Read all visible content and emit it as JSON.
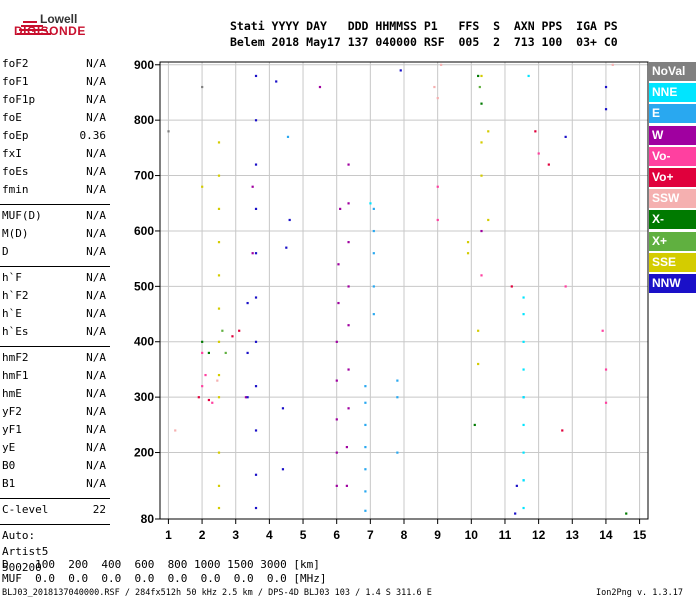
{
  "logo": {
    "top": "Lowell",
    "bottom": "DIGISONDE"
  },
  "header": {
    "line1": "Stati YYYY DAY   DDD HHMMSS P1   FFS  S  AXN PPS  IGA PS",
    "line2": "Belem 2018 May17 137 040000 RSF  005  2  713 100  03+ C0"
  },
  "params_a": [
    {
      "name": "foF2",
      "value": "N/A"
    },
    {
      "name": "foF1",
      "value": "N/A"
    },
    {
      "name": "foF1p",
      "value": "N/A"
    },
    {
      "name": "foE",
      "value": "N/A"
    },
    {
      "name": "foEp",
      "value": "0.36"
    },
    {
      "name": "fxI",
      "value": "N/A"
    },
    {
      "name": "foEs",
      "value": "N/A"
    },
    {
      "name": "fmin",
      "value": "N/A"
    }
  ],
  "params_b": [
    {
      "name": "MUF(D)",
      "value": "N/A"
    },
    {
      "name": "M(D)",
      "value": "N/A"
    },
    {
      "name": "D",
      "value": "N/A"
    }
  ],
  "params_c": [
    {
      "name": "h`F",
      "value": "N/A"
    },
    {
      "name": "h`F2",
      "value": "N/A"
    },
    {
      "name": "h`E",
      "value": "N/A"
    },
    {
      "name": "h`Es",
      "value": "N/A"
    }
  ],
  "params_d": [
    {
      "name": "hmF2",
      "value": "N/A"
    },
    {
      "name": "hmF1",
      "value": "N/A"
    },
    {
      "name": "hmE",
      "value": "N/A"
    },
    {
      "name": "yF2",
      "value": "N/A"
    },
    {
      "name": "yF1",
      "value": "N/A"
    },
    {
      "name": "yE",
      "value": "N/A"
    },
    {
      "name": "B0",
      "value": "N/A"
    },
    {
      "name": "B1",
      "value": "N/A"
    }
  ],
  "clevel": {
    "name": "C-level",
    "value": "22"
  },
  "auto": {
    "line1": "Auto:",
    "line2": "Artist5",
    "line3": "500200"
  },
  "legend": [
    {
      "label": "NoVal",
      "color": "#808080"
    },
    {
      "label": "NNE",
      "color": "#00e5ff"
    },
    {
      "label": "E",
      "color": "#29a8f0"
    },
    {
      "label": "W",
      "color": "#a000a0"
    },
    {
      "label": "Vo-",
      "color": "#ff40a0"
    },
    {
      "label": "Vo+",
      "color": "#e0003c"
    },
    {
      "label": "SSW",
      "color": "#f5b0b0"
    },
    {
      "label": "X-",
      "color": "#007a00"
    },
    {
      "label": "X+",
      "color": "#60b040"
    },
    {
      "label": "SSE",
      "color": "#d4cc00"
    },
    {
      "label": "NNW",
      "color": "#1a10c8"
    }
  ],
  "bottom": {
    "d_row": "D    100  200  400  600  800 1000 1500 3000 [km]",
    "muf_row": "MUF  0.0  0.0  0.0  0.0  0.0  0.0  0.0  0.0 [MHz]",
    "footer_left": "BLJ03_2018137040000.RSF / 284fx512h 50 kHz 2.5 km / DPS-4D BLJ03 103 / 1.4 S 311.6 E",
    "footer_right": "Ion2Png v. 1.3.17"
  },
  "chart_data": {
    "type": "scatter",
    "xlim": [
      0.75,
      15.25
    ],
    "ylim": [
      80,
      905
    ],
    "x_ticks": [
      1,
      2,
      3,
      4,
      5,
      6,
      7,
      8,
      9,
      10,
      11,
      12,
      13,
      14,
      15
    ],
    "y_ticks": [
      80,
      200,
      300,
      400,
      500,
      600,
      700,
      800,
      900
    ],
    "grid": true,
    "legend_position": "right",
    "series": [
      {
        "name": "E",
        "color": "#29a8f0",
        "points": [
          [
            6.85,
            95
          ],
          [
            6.85,
            130
          ],
          [
            6.85,
            170
          ],
          [
            6.85,
            210
          ],
          [
            6.85,
            250
          ],
          [
            6.85,
            290
          ],
          [
            6.85,
            320
          ],
          [
            7.1,
            450
          ],
          [
            7.1,
            500
          ],
          [
            7.1,
            560
          ],
          [
            7.1,
            600
          ],
          [
            7.1,
            640
          ],
          [
            7.8,
            300
          ],
          [
            7.8,
            330
          ],
          [
            7.8,
            200
          ],
          [
            11.55,
            150
          ],
          [
            11.55,
            300
          ],
          [
            4.55,
            770
          ]
        ]
      },
      {
        "name": "NNE",
        "color": "#00e5ff",
        "points": [
          [
            11.55,
            100
          ],
          [
            11.55,
            150
          ],
          [
            11.55,
            200
          ],
          [
            11.55,
            250
          ],
          [
            11.55,
            300
          ],
          [
            11.55,
            350
          ],
          [
            11.55,
            400
          ],
          [
            11.55,
            450
          ],
          [
            11.55,
            480
          ],
          [
            11.7,
            880
          ],
          [
            7.0,
            650
          ]
        ]
      },
      {
        "name": "W",
        "color": "#a000a0",
        "points": [
          [
            6.0,
            140
          ],
          [
            6.0,
            200
          ],
          [
            6.0,
            260
          ],
          [
            6.0,
            330
          ],
          [
            6.0,
            400
          ],
          [
            6.05,
            470
          ],
          [
            6.05,
            540
          ],
          [
            6.1,
            640
          ],
          [
            6.35,
            720
          ],
          [
            6.35,
            650
          ],
          [
            6.35,
            580
          ],
          [
            6.35,
            500
          ],
          [
            6.35,
            430
          ],
          [
            6.35,
            350
          ],
          [
            6.35,
            280
          ],
          [
            6.3,
            210
          ],
          [
            6.3,
            140
          ],
          [
            5.5,
            860
          ],
          [
            3.3,
            300
          ],
          [
            10.3,
            600
          ],
          [
            3.5,
            680
          ],
          [
            3.5,
            560
          ]
        ]
      },
      {
        "name": "NNW",
        "color": "#1a10c8",
        "points": [
          [
            3.6,
            880
          ],
          [
            3.6,
            800
          ],
          [
            3.6,
            720
          ],
          [
            3.6,
            640
          ],
          [
            3.6,
            560
          ],
          [
            3.6,
            480
          ],
          [
            3.6,
            400
          ],
          [
            3.6,
            320
          ],
          [
            3.6,
            240
          ],
          [
            3.6,
            160
          ],
          [
            3.6,
            100
          ],
          [
            3.35,
            470
          ],
          [
            3.35,
            380
          ],
          [
            3.35,
            300
          ],
          [
            4.4,
            170
          ],
          [
            4.4,
            280
          ],
          [
            4.2,
            870
          ],
          [
            4.5,
            570
          ],
          [
            4.6,
            620
          ],
          [
            7.9,
            890
          ],
          [
            14.0,
            860
          ],
          [
            14.0,
            820
          ],
          [
            11.3,
            90
          ],
          [
            11.35,
            140
          ],
          [
            12.8,
            770
          ]
        ]
      },
      {
        "name": "Vo-",
        "color": "#ff40a0",
        "points": [
          [
            2.0,
            320
          ],
          [
            2.0,
            380
          ],
          [
            2.1,
            340
          ],
          [
            9.0,
            620
          ],
          [
            9.0,
            680
          ],
          [
            10.3,
            520
          ],
          [
            12.0,
            740
          ],
          [
            13.9,
            420
          ],
          [
            14.0,
            350
          ],
          [
            14.0,
            290
          ],
          [
            2.3,
            290
          ],
          [
            12.8,
            500
          ]
        ]
      },
      {
        "name": "Vo+",
        "color": "#e0003c",
        "points": [
          [
            2.9,
            410
          ],
          [
            1.9,
            300
          ],
          [
            2.2,
            295
          ],
          [
            3.1,
            420
          ],
          [
            11.2,
            500
          ],
          [
            11.9,
            780
          ],
          [
            12.7,
            240
          ],
          [
            12.3,
            720
          ]
        ]
      },
      {
        "name": "SSW",
        "color": "#f5b0b0",
        "points": [
          [
            8.9,
            860
          ],
          [
            9.0,
            840
          ],
          [
            1.2,
            240
          ],
          [
            2.45,
            330
          ],
          [
            9.1,
            900
          ],
          [
            14.2,
            900
          ]
        ]
      },
      {
        "name": "X-",
        "color": "#007a00",
        "points": [
          [
            10.2,
            880
          ],
          [
            10.3,
            830
          ],
          [
            10.1,
            250
          ],
          [
            2.2,
            380
          ],
          [
            14.6,
            90
          ],
          [
            2.0,
            400
          ]
        ]
      },
      {
        "name": "X+",
        "color": "#60b040",
        "points": [
          [
            10.25,
            860
          ],
          [
            2.6,
            420
          ],
          [
            2.7,
            380
          ]
        ]
      },
      {
        "name": "SSE",
        "color": "#d4cc00",
        "points": [
          [
            2.5,
            760
          ],
          [
            2.5,
            700
          ],
          [
            2.5,
            640
          ],
          [
            2.5,
            580
          ],
          [
            2.5,
            520
          ],
          [
            2.5,
            460
          ],
          [
            2.5,
            400
          ],
          [
            2.5,
            340
          ],
          [
            2.5,
            300
          ],
          [
            2.5,
            200
          ],
          [
            2.5,
            140
          ],
          [
            2.5,
            100
          ],
          [
            10.3,
            880
          ],
          [
            10.3,
            760
          ],
          [
            10.3,
            700
          ],
          [
            10.5,
            780
          ],
          [
            10.5,
            620
          ],
          [
            10.2,
            420
          ],
          [
            10.2,
            360
          ],
          [
            9.9,
            580
          ],
          [
            9.9,
            560
          ],
          [
            2.0,
            680
          ]
        ]
      },
      {
        "name": "NoVal",
        "color": "#808080",
        "points": [
          [
            1.0,
            780
          ],
          [
            2.0,
            860
          ]
        ]
      }
    ]
  }
}
